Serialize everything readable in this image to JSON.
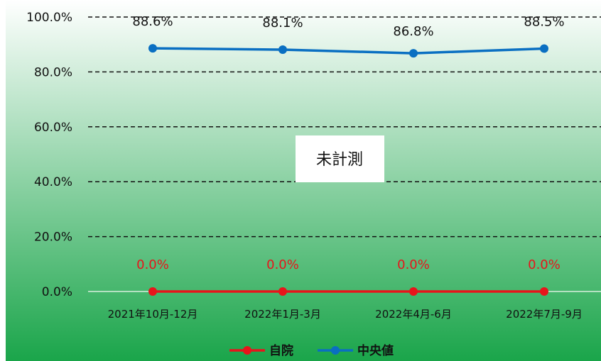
{
  "chart_data": {
    "type": "line",
    "categories": [
      "2021年10月-12月",
      "2022年1月-3月",
      "2022年4月-6月",
      "2022年7月-9月"
    ],
    "series": [
      {
        "name": "自院",
        "values": [
          0.0,
          0.0,
          0.0,
          0.0
        ],
        "labels": [
          "0.0%",
          "0.0%",
          "0.0%",
          "0.0%"
        ],
        "color": "#e8141b"
      },
      {
        "name": "中央値",
        "values": [
          88.6,
          88.1,
          86.8,
          88.5
        ],
        "labels": [
          "88.6%",
          "88.1%",
          "86.8%",
          "88.5%"
        ],
        "color": "#0a6fc2"
      }
    ],
    "yticks": [
      "0.0%",
      "20.0%",
      "40.0%",
      "60.0%",
      "80.0%",
      "100.0%"
    ],
    "ylim": [
      0,
      100
    ],
    "grid": true,
    "legend": "bottom",
    "annotation": "未計測",
    "background": {
      "top": "#ffffff",
      "bottom": "#1aa54a"
    }
  }
}
